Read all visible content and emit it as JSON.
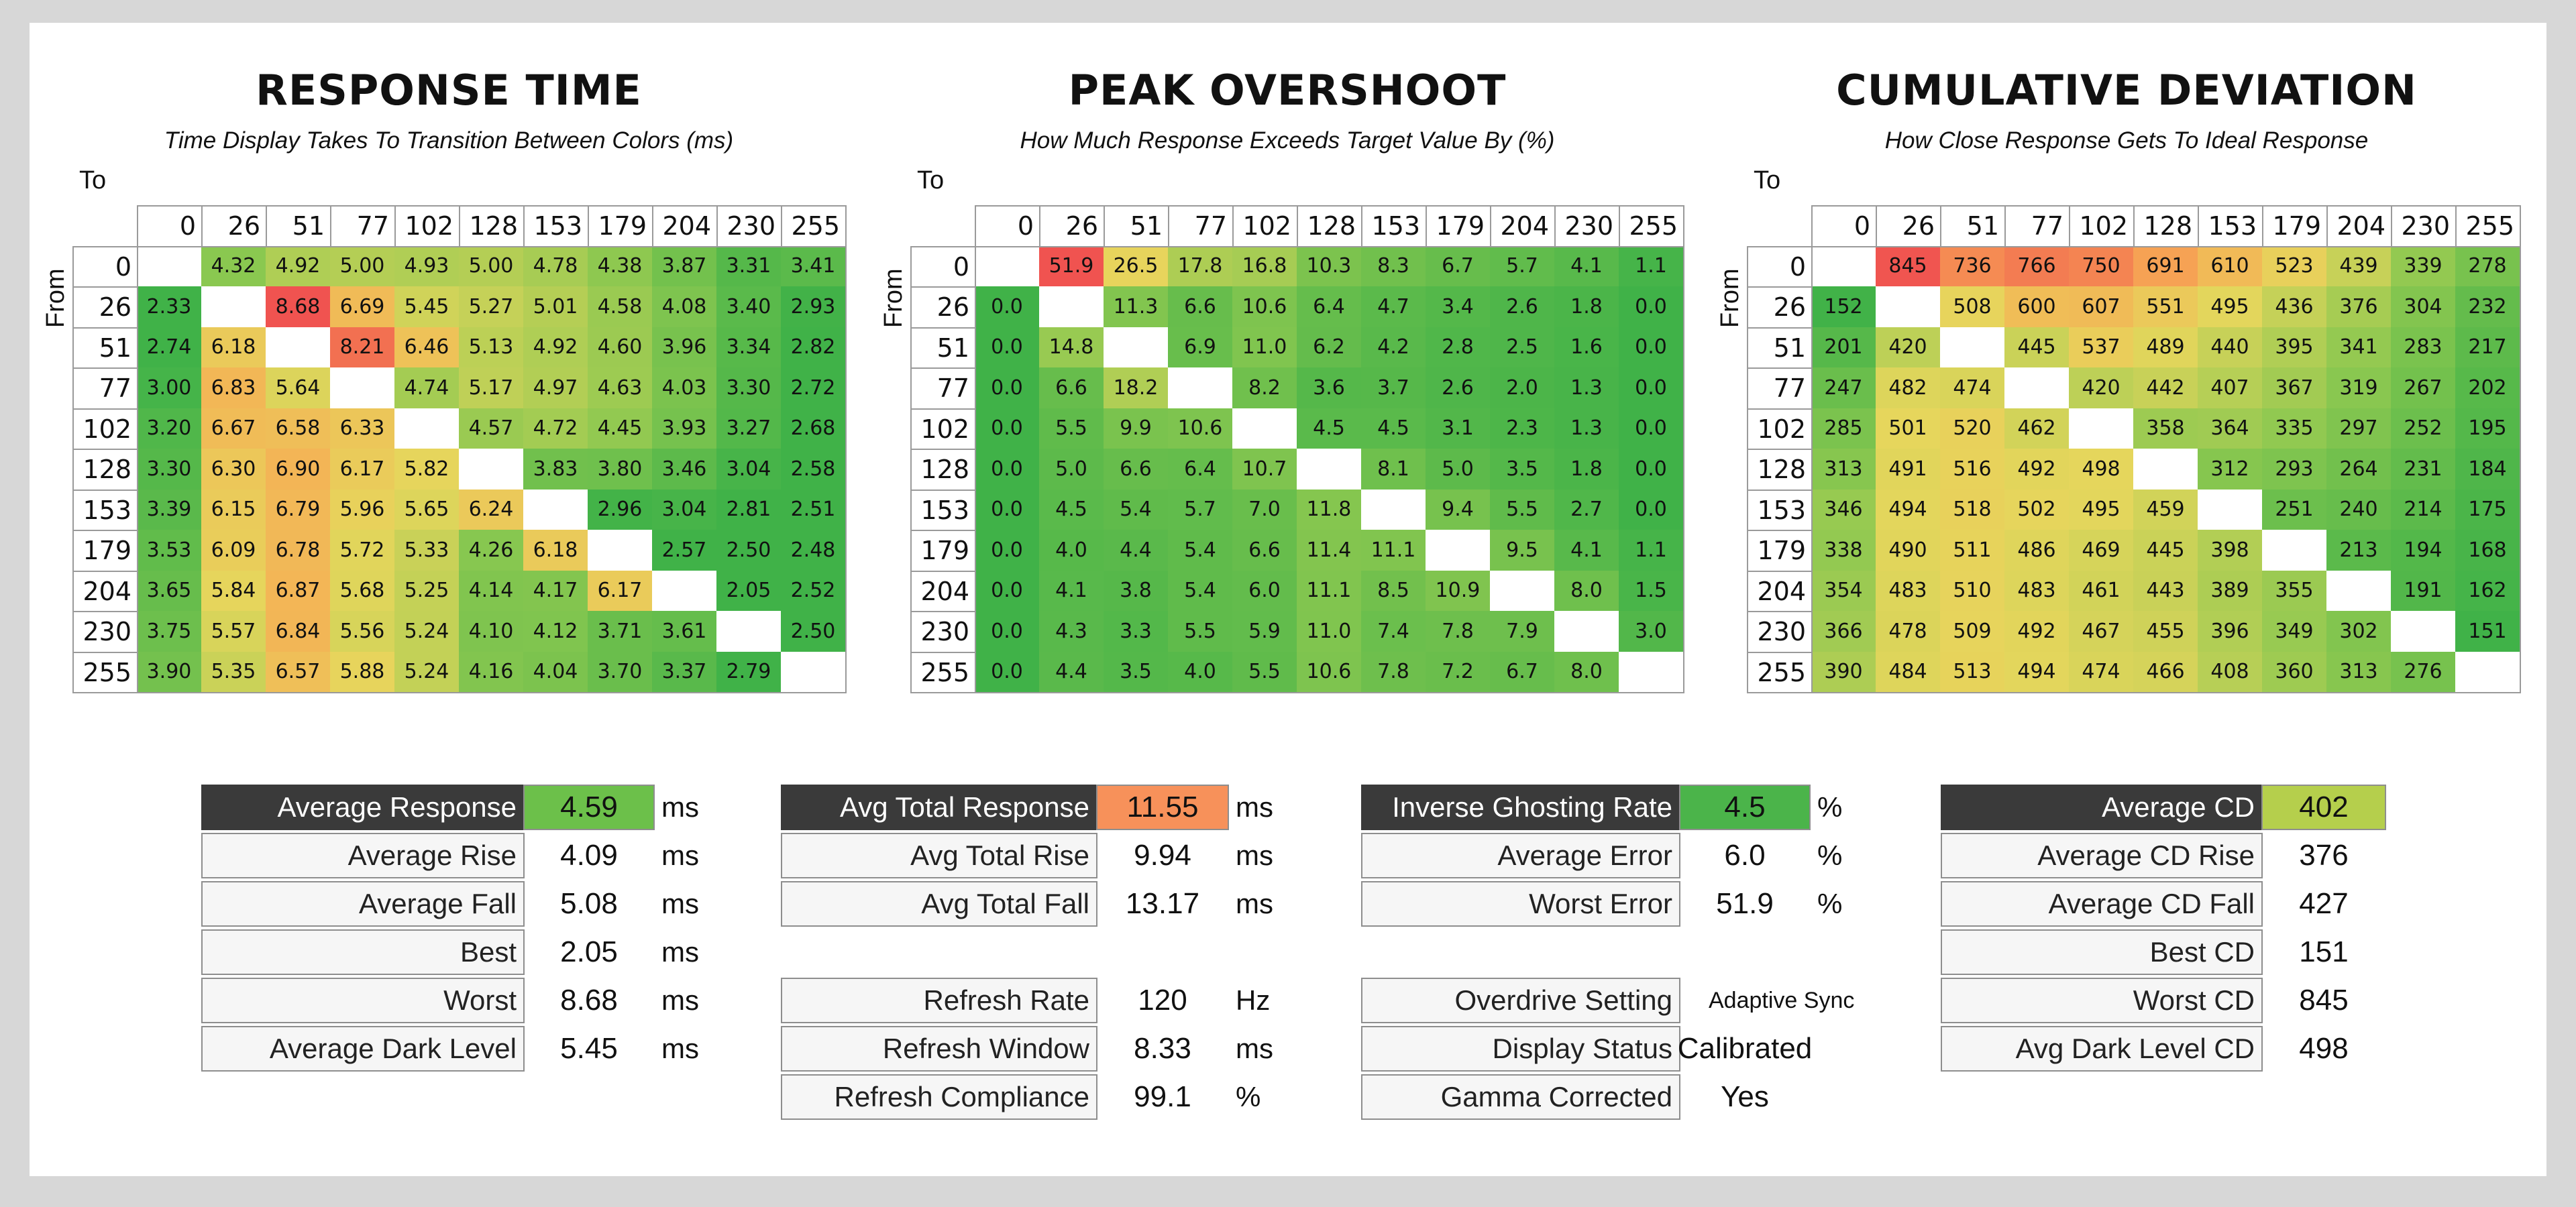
{
  "chart_data": [
    {
      "type": "heatmap",
      "title": "RESPONSE TIME",
      "subtitle": "Time Display Takes To Transition Between Colors (ms)",
      "xlabel": "To",
      "ylabel": "From",
      "levels": [
        "0",
        "26",
        "51",
        "77",
        "102",
        "128",
        "153",
        "179",
        "204",
        "230",
        "255"
      ],
      "values": [
        [
          null,
          "4.32",
          "4.92",
          "5.00",
          "4.93",
          "5.00",
          "4.78",
          "4.38",
          "3.87",
          "3.31",
          "3.41"
        ],
        [
          "2.33",
          null,
          "8.68",
          "6.69",
          "5.45",
          "5.27",
          "5.01",
          "4.58",
          "4.08",
          "3.40",
          "2.93"
        ],
        [
          "2.74",
          "6.18",
          null,
          "8.21",
          "6.46",
          "5.13",
          "4.92",
          "4.60",
          "3.96",
          "3.34",
          "2.82"
        ],
        [
          "3.00",
          "6.83",
          "5.64",
          null,
          "4.74",
          "5.17",
          "4.97",
          "4.63",
          "4.03",
          "3.30",
          "2.72"
        ],
        [
          "3.20",
          "6.67",
          "6.58",
          "6.33",
          null,
          "4.57",
          "4.72",
          "4.45",
          "3.93",
          "3.27",
          "2.68"
        ],
        [
          "3.30",
          "6.30",
          "6.90",
          "6.17",
          "5.82",
          null,
          "3.83",
          "3.80",
          "3.46",
          "3.04",
          "2.58"
        ],
        [
          "3.39",
          "6.15",
          "6.79",
          "5.96",
          "5.65",
          "6.24",
          null,
          "2.96",
          "3.04",
          "2.81",
          "2.51"
        ],
        [
          "3.53",
          "6.09",
          "6.78",
          "5.72",
          "5.33",
          "4.26",
          "6.18",
          null,
          "2.57",
          "2.50",
          "2.48"
        ],
        [
          "3.65",
          "5.84",
          "6.87",
          "5.68",
          "5.25",
          "4.14",
          "4.17",
          "6.17",
          null,
          "2.05",
          "2.52"
        ],
        [
          "3.75",
          "5.57",
          "6.84",
          "5.56",
          "5.24",
          "4.10",
          "4.12",
          "3.71",
          "3.61",
          null,
          "2.50"
        ],
        [
          "3.90",
          "5.35",
          "6.57",
          "5.88",
          "5.24",
          "4.16",
          "4.04",
          "3.70",
          "3.37",
          "2.79",
          null
        ]
      ],
      "color_scale": {
        "low": 2.9,
        "high": 8.7
      }
    },
    {
      "type": "heatmap",
      "title": "PEAK OVERSHOOT",
      "subtitle": "How Much Response Exceeds Target Value By (%)",
      "xlabel": "To",
      "ylabel": "From",
      "levels": [
        "0",
        "26",
        "51",
        "77",
        "102",
        "128",
        "153",
        "179",
        "204",
        "230",
        "255"
      ],
      "values": [
        [
          null,
          "51.9",
          "26.5",
          "17.8",
          "16.8",
          "10.3",
          "8.3",
          "6.7",
          "5.7",
          "4.1",
          "1.1"
        ],
        [
          "0.0",
          null,
          "11.3",
          "6.6",
          "10.6",
          "6.4",
          "4.7",
          "3.4",
          "2.6",
          "1.8",
          "0.0"
        ],
        [
          "0.0",
          "14.8",
          null,
          "6.9",
          "11.0",
          "6.2",
          "4.2",
          "2.8",
          "2.5",
          "1.6",
          "0.0"
        ],
        [
          "0.0",
          "6.6",
          "18.2",
          null,
          "8.2",
          "3.6",
          "3.7",
          "2.6",
          "2.0",
          "1.3",
          "0.0"
        ],
        [
          "0.0",
          "5.5",
          "9.9",
          "10.6",
          null,
          "4.5",
          "4.5",
          "3.1",
          "2.3",
          "1.3",
          "0.0"
        ],
        [
          "0.0",
          "5.0",
          "6.6",
          "6.4",
          "10.7",
          null,
          "8.1",
          "5.0",
          "3.5",
          "1.8",
          "0.0"
        ],
        [
          "0.0",
          "4.5",
          "5.4",
          "5.7",
          "7.0",
          "11.8",
          null,
          "9.4",
          "5.5",
          "2.7",
          "0.0"
        ],
        [
          "0.0",
          "4.0",
          "4.4",
          "5.4",
          "6.6",
          "11.4",
          "11.1",
          null,
          "9.5",
          "4.1",
          "1.1"
        ],
        [
          "0.0",
          "4.1",
          "3.8",
          "5.4",
          "6.0",
          "11.1",
          "8.5",
          "10.9",
          null,
          "8.0",
          "1.5"
        ],
        [
          "0.0",
          "4.3",
          "3.3",
          "5.5",
          "5.9",
          "11.0",
          "7.4",
          "7.8",
          "7.9",
          null,
          "3.0"
        ],
        [
          "0.0",
          "4.4",
          "3.5",
          "4.0",
          "5.5",
          "10.6",
          "7.8",
          "7.2",
          "6.7",
          "8.0",
          null
        ]
      ],
      "color_scale": {
        "low": 0,
        "high": 52
      }
    },
    {
      "type": "heatmap",
      "title": "CUMULATIVE DEVIATION",
      "subtitle": "How Close Response Gets To Ideal Response",
      "xlabel": "To",
      "ylabel": "From",
      "levels": [
        "0",
        "26",
        "51",
        "77",
        "102",
        "128",
        "153",
        "179",
        "204",
        "230",
        "255"
      ],
      "values": [
        [
          null,
          "845",
          "736",
          "766",
          "750",
          "691",
          "610",
          "523",
          "439",
          "339",
          "278"
        ],
        [
          "152",
          null,
          "508",
          "600",
          "607",
          "551",
          "495",
          "436",
          "376",
          "304",
          "232"
        ],
        [
          "201",
          "420",
          null,
          "445",
          "537",
          "489",
          "440",
          "395",
          "341",
          "283",
          "217"
        ],
        [
          "247",
          "482",
          "474",
          null,
          "420",
          "442",
          "407",
          "367",
          "319",
          "267",
          "202"
        ],
        [
          "285",
          "501",
          "520",
          "462",
          null,
          "358",
          "364",
          "335",
          "297",
          "252",
          "195"
        ],
        [
          "313",
          "491",
          "516",
          "492",
          "498",
          null,
          "312",
          "293",
          "264",
          "231",
          "184"
        ],
        [
          "346",
          "494",
          "518",
          "502",
          "495",
          "459",
          null,
          "251",
          "240",
          "214",
          "175"
        ],
        [
          "338",
          "490",
          "511",
          "486",
          "469",
          "445",
          "398",
          null,
          "213",
          "194",
          "168"
        ],
        [
          "354",
          "483",
          "510",
          "483",
          "461",
          "443",
          "389",
          "355",
          null,
          "191",
          "162"
        ],
        [
          "366",
          "478",
          "509",
          "492",
          "467",
          "455",
          "396",
          "349",
          "302",
          null,
          "151"
        ],
        [
          "390",
          "484",
          "513",
          "494",
          "474",
          "466",
          "408",
          "360",
          "313",
          "276",
          null
        ]
      ],
      "color_scale": {
        "low": 150,
        "high": 850
      }
    }
  ],
  "stats": [
    {
      "label_width_key": "a",
      "rows": [
        {
          "label": "Average Response",
          "value": "4.59",
          "unit": "ms",
          "header": true,
          "color": "#6cc04a"
        },
        {
          "label": "Average Rise",
          "value": "4.09",
          "unit": "ms"
        },
        {
          "label": "Average Fall",
          "value": "5.08",
          "unit": "ms"
        },
        {
          "label": "Best",
          "value": "2.05",
          "unit": "ms"
        },
        {
          "label": "Worst",
          "value": "8.68",
          "unit": "ms"
        },
        {
          "label": "Average Dark Level",
          "value": "5.45",
          "unit": "ms"
        }
      ]
    },
    {
      "label_width_key": "b",
      "rows": [
        {
          "label": "Avg Total Response",
          "value": "11.55",
          "unit": "ms",
          "header": true,
          "color": "#f7915a"
        },
        {
          "label": "Avg Total Rise",
          "value": "9.94",
          "unit": "ms"
        },
        {
          "label": "Avg Total Fall",
          "value": "13.17",
          "unit": "ms"
        },
        {
          "spacer": true
        },
        {
          "label": "Refresh Rate",
          "value": "120",
          "unit": "Hz"
        },
        {
          "label": "Refresh Window",
          "value": "8.33",
          "unit": "ms"
        },
        {
          "label": "Refresh Compliance",
          "value": "99.1",
          "unit": "%"
        }
      ]
    },
    {
      "label_width_key": "c",
      "rows": [
        {
          "label": "Inverse Ghosting Rate",
          "value": "4.5",
          "unit": "%",
          "header": true,
          "color": "#4bb44a"
        },
        {
          "label": "Average Error",
          "value": "6.0",
          "unit": "%"
        },
        {
          "label": "Worst Error",
          "value": "51.9",
          "unit": "%"
        },
        {
          "spacer": true
        },
        {
          "label": "Overdrive Setting",
          "value": "Adaptive Sync",
          "unit": "",
          "small": true
        },
        {
          "label": "Display Status",
          "value": "Calibrated",
          "unit": ""
        },
        {
          "label": "Gamma Corrected",
          "value": "Yes",
          "unit": ""
        }
      ]
    },
    {
      "label_width_key": "d",
      "rows": [
        {
          "label": "Average CD",
          "value": "402",
          "unit": "",
          "header": true,
          "color": "#b5cf4c"
        },
        {
          "label": "Average CD Rise",
          "value": "376",
          "unit": ""
        },
        {
          "label": "Average CD Fall",
          "value": "427",
          "unit": ""
        },
        {
          "label": "Best CD",
          "value": "151",
          "unit": ""
        },
        {
          "label": "Worst CD",
          "value": "845",
          "unit": ""
        },
        {
          "label": "Avg Dark Level CD",
          "value": "498",
          "unit": ""
        }
      ]
    }
  ]
}
